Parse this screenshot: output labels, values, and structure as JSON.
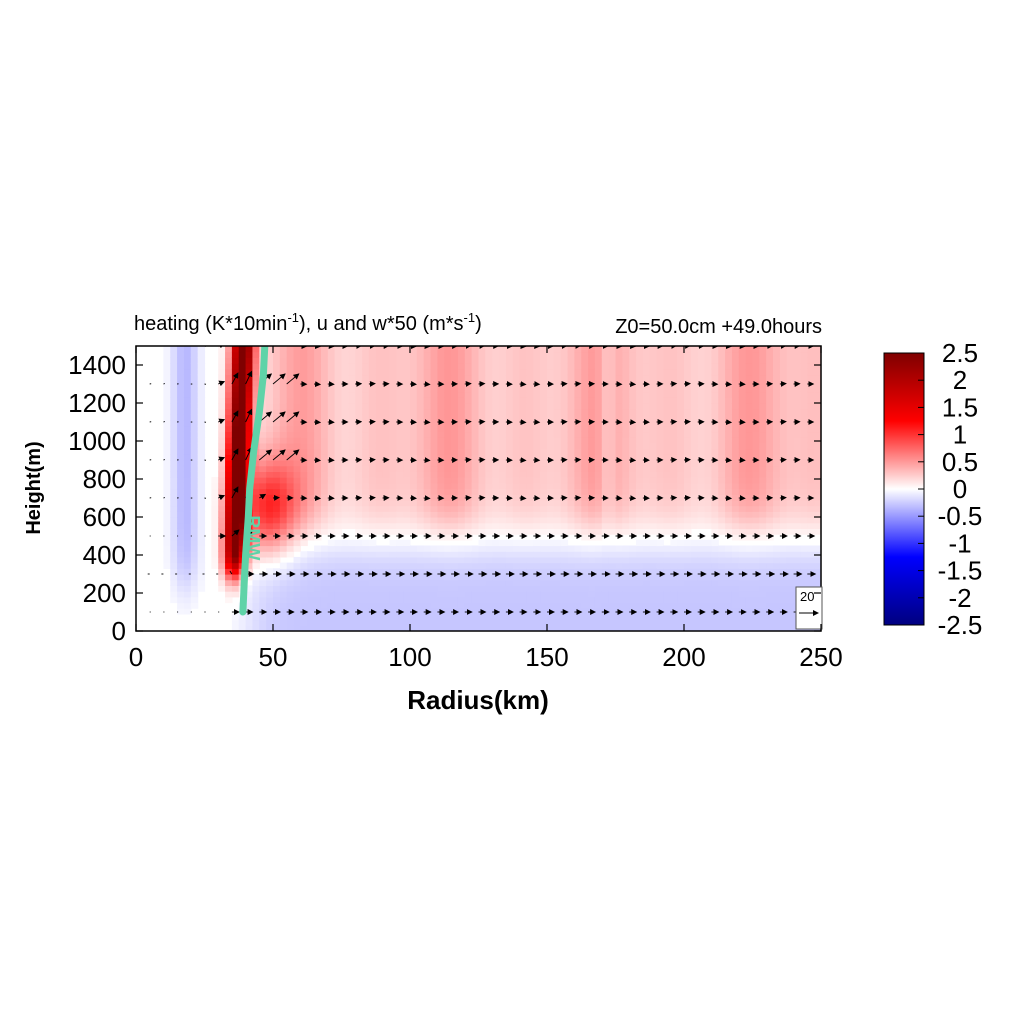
{
  "chart_data": {
    "type": "heatmap",
    "title": "heating (K*10min",
    "title_sup1": "-1",
    "title_mid": "), u and w*50 (m*s",
    "title_sup2": "-1",
    "title_end": ")",
    "subtitle_right": "Z0=50.0cm  +49.0hours",
    "xlabel": "Radius(km)",
    "ylabel": "Height(m)",
    "xlim": [
      0,
      250
    ],
    "ylim": [
      0,
      1500
    ],
    "xticks": [
      "0",
      "50",
      "100",
      "150",
      "200",
      "250"
    ],
    "yticks": [
      "0",
      "200",
      "400",
      "600",
      "800",
      "1000",
      "1200",
      "1400"
    ],
    "colorbar": {
      "range": [
        -2.5,
        2.5
      ],
      "ticks": [
        "2.5",
        "2",
        "1.5",
        "1",
        "0.5",
        "0",
        "-0.5",
        "-1",
        "-1.5",
        "-2",
        "-2.5"
      ],
      "colors": [
        "#00007f",
        "#0000ff",
        "#ffffff",
        "#ff0000",
        "#7f0000"
      ]
    },
    "rmw_label": "RMW",
    "rmw_color": "#5fd3a8",
    "rmw_line": [
      {
        "r": 39,
        "z": 100
      },
      {
        "r": 39.5,
        "z": 250
      },
      {
        "r": 40,
        "z": 400
      },
      {
        "r": 41,
        "z": 600
      },
      {
        "r": 41.5,
        "z": 750
      },
      {
        "r": 43,
        "z": 950
      },
      {
        "r": 45,
        "z": 1150
      },
      {
        "r": 46.5,
        "z": 1350
      },
      {
        "r": 47,
        "z": 1500
      }
    ],
    "reference_vector": {
      "label": "20",
      "magnitude": 20
    },
    "heating_features": [
      {
        "name": "eyewall heating",
        "r": 37,
        "z": 900,
        "value": 2.5
      },
      {
        "name": "outer heating",
        "r": 120,
        "z": 1000,
        "value": 0.6
      },
      {
        "name": "inner cooling",
        "r": 20,
        "z": 1000,
        "value": -0.4
      },
      {
        "name": "boundary layer cooling",
        "r": 150,
        "z": 200,
        "value": -0.3
      }
    ],
    "wind_levels": [
      100,
      300,
      500,
      700,
      900,
      1100,
      1300,
      1500
    ]
  }
}
